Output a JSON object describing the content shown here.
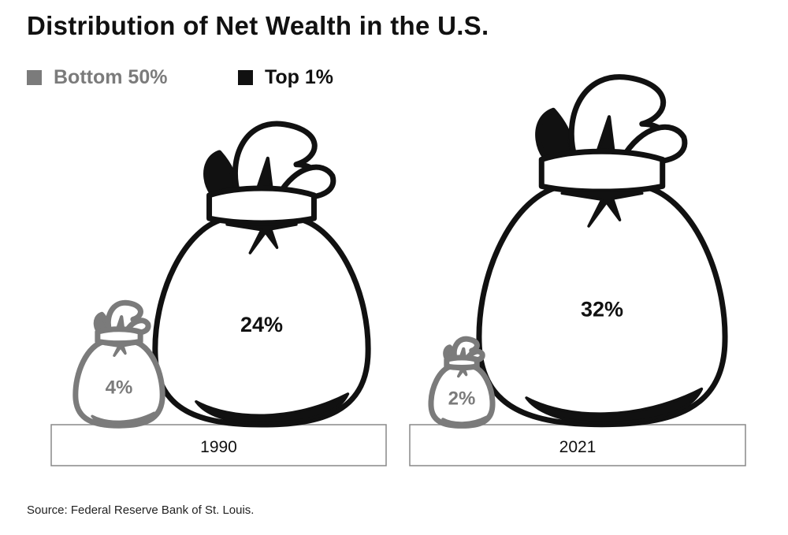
{
  "colors": {
    "bottom_50": "#7b7b7b",
    "top_1": "#111111",
    "base_border": "#888888"
  },
  "chart_data": {
    "type": "bar",
    "title": "Distribution of Net Wealth in the U.S.",
    "categories": [
      "1990",
      "2021"
    ],
    "series": [
      {
        "name": "Bottom 50%",
        "values": [
          4,
          2
        ],
        "labels": [
          "4%",
          "2%"
        ],
        "color": "#7b7b7b"
      },
      {
        "name": "Top 1%",
        "values": [
          24,
          32
        ],
        "labels": [
          "24%",
          "32%"
        ],
        "color": "#111111"
      }
    ],
    "unit": "%",
    "legend": "top-left",
    "source": "Source: Federal Reserve Bank of St. Louis."
  }
}
